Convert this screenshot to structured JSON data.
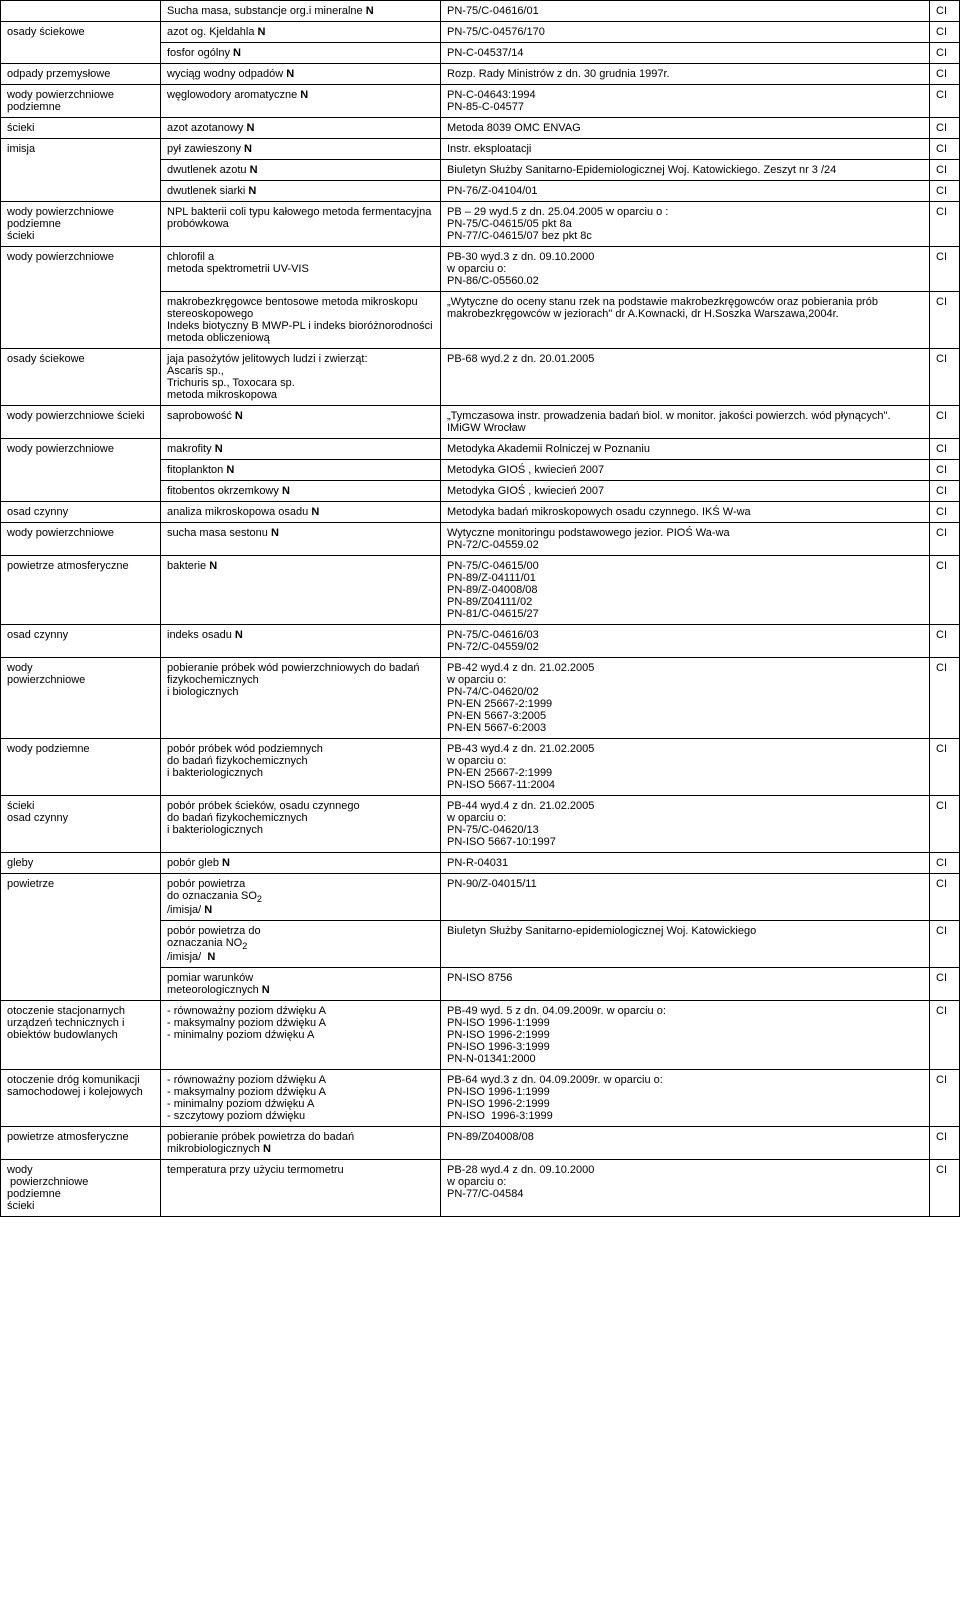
{
  "rows": [
    {
      "c1": "",
      "c2": "Sucha masa, substancje org.i mineralne <b>N</b>",
      "c3": "PN-75/C-04616/01",
      "c4": "CI",
      "rs1": 1
    },
    {
      "c1": "osady ściekowe",
      "c2": "azot og. Kjeldahla <b>N</b>",
      "c3": "PN-75/C-04576/170",
      "c4": "CI",
      "rs1": 2
    },
    {
      "c2": "fosfor ogólny <b>N</b>",
      "c3": "PN-C-04537/14",
      "c4": "CI"
    },
    {
      "c1": "odpady przemysłowe",
      "c2": "wyciąg wodny odpadów <b>N</b>",
      "c3": "Rozp. Rady Ministrów z dn. 30 grudnia 1997r.",
      "c4": "CI",
      "rs1": 1
    },
    {
      "c1": "wody powierzchniowe podziemne",
      "c2": "węglowodory aromatyczne <b>N</b>",
      "c3": "PN-C-04643:1994<br>PN-85-C-04577",
      "c4": "CI",
      "rs1": 1
    },
    {
      "c1": "ścieki",
      "c2": "azot azotanowy <b>N</b>",
      "c3": "Metoda 8039 OMC ENVAG",
      "c4": "CI",
      "rs1": 1
    },
    {
      "c1": "imisja",
      "c2": "pył zawieszony <b>N</b>",
      "c3": "Instr. eksploatacji",
      "c4": "CI",
      "rs1": 3
    },
    {
      "c2": "dwutlenek azotu <b>N</b>",
      "c3": "Biuletyn Służby Sanitarno-Epidemiologicznej Woj. Katowickiego. Zeszyt nr 3 /24",
      "c4": "CI"
    },
    {
      "c2": "dwutlenek siarki <b>N</b>",
      "c3": "PN-76/Z-04104/01",
      "c4": "CI"
    },
    {
      "c1": "wody powierzchniowe podziemne<br>ścieki",
      "c2": "NPL bakterii coli typu kałowego metoda fermentacyjna probówkowa",
      "c3": "PB – 29 wyd.5 z dn. 25.04.2005 w oparciu o :<br>PN-75/C-04615/05 pkt 8a<br>PN-77/C-04615/07 bez pkt 8c",
      "c4": "CI",
      "rs1": 1
    },
    {
      "c1": "wody powierzchniowe",
      "c2": "chlorofil a<br>metoda spektrometrii UV-VIS",
      "c3": "PB-30 wyd.3 z dn. 09.10.2000<br>w oparciu o:<br>PN-86/C-05560.02",
      "c4": "CI",
      "rs1": 2
    },
    {
      "c2": "makrobezkręgowce bentosowe metoda mikroskopu stereoskopowego<br>Indeks biotyczny B MWP-PL i indeks bioróżnorodności<br>metoda obliczeniową",
      "c3": "„Wytyczne do oceny stanu rzek na podstawie makrobezkręgowców oraz pobierania prób makrobezkręgowców w jeziorach\" dr A.Kownacki, dr H.Soszka Warszawa,2004r.",
      "c4": "CI"
    },
    {
      "c1": "osady ściekowe",
      "c2": "jaja pasożytów jelitowych ludzi i zwierząt:<br>Ascaris sp.,<br>Trichuris sp., Toxocara sp.<br>metoda mikroskopowa",
      "c3": "PB-68 wyd.2 z dn. 20.01.2005",
      "c4": "CI",
      "rs1": 1
    },
    {
      "c1": "wody powierzchniowe ścieki",
      "c2": "saprobowość <b>N</b>",
      "c3": "„Tymczasowa instr. prowadzenia badań biol. w monitor. jakości powierzch. wód płynących\". IMiGW Wrocław",
      "c4": "CI",
      "rs1": 1
    },
    {
      "c1": "wody powierzchniowe",
      "c2": "makrofity <b>N</b>",
      "c3": "Metodyka Akademii Rolniczej w Poznaniu",
      "c4": "CI",
      "rs1": 3
    },
    {
      "c2": "fitoplankton <b>N</b>",
      "c3": "Metodyka GIOŚ , kwiecień 2007",
      "c4": "CI"
    },
    {
      "c2": "fitobentos okrzemkowy <b>N</b>",
      "c3": "Metodyka GIOŚ , kwiecień 2007",
      "c4": "CI"
    },
    {
      "c1": "osad czynny",
      "c2": "analiza mikroskopowa osadu <b>N</b>",
      "c3": "Metodyka badań mikroskopowych osadu czynnego. IKŚ W-wa",
      "c4": "CI",
      "rs1": 1
    },
    {
      "c1": "wody powierzchniowe",
      "c2": "sucha masa sestonu <b>N</b>",
      "c3": "Wytyczne monitoringu podstawowego jezior. PIOŚ Wa-wa<br>PN-72/C-04559.02",
      "c4": "CI",
      "rs1": 1
    },
    {
      "c1": "powietrze atmosferyczne",
      "c2": "bakterie <b>N</b>",
      "c3": "PN-75/C-04615/00<br>PN-89/Z-04111/01<br>PN-89/Z-04008/08<br>PN-89/Z04111/02<br>PN-81/C-04615/27",
      "c4": "CI",
      "rs1": 1
    },
    {
      "c1": "osad czynny",
      "c2": "indeks osadu <b>N</b>",
      "c3": "PN-75/C-04616/03<br>PN-72/C-04559/02",
      "c4": "CI",
      "rs1": 1
    },
    {
      "c1": "wody<br>powierzchniowe",
      "c2": "pobieranie próbek wód powierzchniowych do badań fizykochemicznych<br>i biologicznych",
      "c3": "PB-42 wyd.4 z dn. 21.02.2005<br>w oparciu o:<br>PN-74/C-04620/02<br>PN-EN 25667-2:1999<br>PN-EN 5667-3:2005<br>PN-EN 5667-6:2003",
      "c4": "CI",
      "rs1": 1
    },
    {
      "c1": "wody podziemne",
      "c2": "pobór próbek wód podziemnych<br>do badań fizykochemicznych<br>i bakteriologicznych",
      "c3": "PB-43 wyd.4 z dn. 21.02.2005<br>w oparciu o:<br>PN-EN 25667-2:1999<br>PN-ISO 5667-11:2004",
      "c4": "CI",
      "rs1": 1
    },
    {
      "c1": "ścieki<br>osad czynny",
      "c2": "pobór próbek ścieków, osadu czynnego<br>do badań fizykochemicznych<br>i bakteriologicznych",
      "c3": "PB-44 wyd.4 z dn. 21.02.2005<br>w oparciu o:<br>PN-75/C-04620/13<br>PN-ISO 5667-10:1997",
      "c4": "CI",
      "rs1": 1
    },
    {
      "c1": "gleby",
      "c2": "pobór gleb <b>N</b>",
      "c3": "PN-R-04031",
      "c4": "CI",
      "rs1": 1
    },
    {
      "c1": "powietrze",
      "c2": "pobór powietrza<br>do oznaczania SO<sub>2</sub><br>/imisja/ <b>N</b>",
      "c3": "PN-90/Z-04015/11",
      "c4": "CI",
      "rs1": 3
    },
    {
      "c2": "pobór powietrza do<br>oznaczania NO<sub>2</sub><br>/imisja/ &nbsp;<b>N</b>",
      "c3": "Biuletyn Służby Sanitarno-epidemiologicznej Woj. Katowickiego",
      "c4": "CI"
    },
    {
      "c2": "pomiar warunków<br>meteorologicznych <b>N</b>",
      "c3": "PN-ISO 8756",
      "c4": "CI"
    },
    {
      "c1": "otoczenie stacjonarnych urządzeń technicznych i obiektów budowlanych",
      "c2": "- równoważny poziom dźwięku A<br>- maksymalny poziom dźwięku A<br>- minimalny poziom dźwięku A",
      "c3": "PB-49 wyd. 5 z dn. 04.09.2009r. w oparciu o:<br>PN-ISO 1996-1:1999<br>PN-ISO 1996-2:1999<br>PN-ISO 1996-3:1999<br>PN-N-01341:2000",
      "c4": "CI",
      "rs1": 1
    },
    {
      "c1": "otoczenie dróg komunikacji samochodowej i kolejowych",
      "c2": "- równoważny poziom dźwięku A<br>- maksymalny poziom dźwięku A<br>- minimalny poziom dźwięku A<br>- szczytowy poziom dźwięku",
      "c3": "PB-64 wyd.3 z dn. 04.09.2009r. w oparciu o:<br>PN-ISO 1996-1:1999<br>PN-ISO 1996-2:1999<br>PN-ISO &nbsp;1996-3:1999",
      "c4": "CI",
      "rs1": 1
    },
    {
      "c1": "powietrze atmosferyczne",
      "c2": "pobieranie próbek powietrza do badań mikrobiologicznych <b>N</b>",
      "c3": "PN-89/Z04008/08",
      "c4": "CI",
      "rs1": 1
    },
    {
      "c1": "wody<br>&nbsp;powierzchniowe<br>podziemne<br>ścieki",
      "c2": "temperatura przy użyciu termometru",
      "c3": "PB-28 wyd.4 z dn. 09.10.2000<br>w oparciu o:<br>PN-77/C-04584",
      "c4": "CI",
      "rs1": 1
    }
  ]
}
